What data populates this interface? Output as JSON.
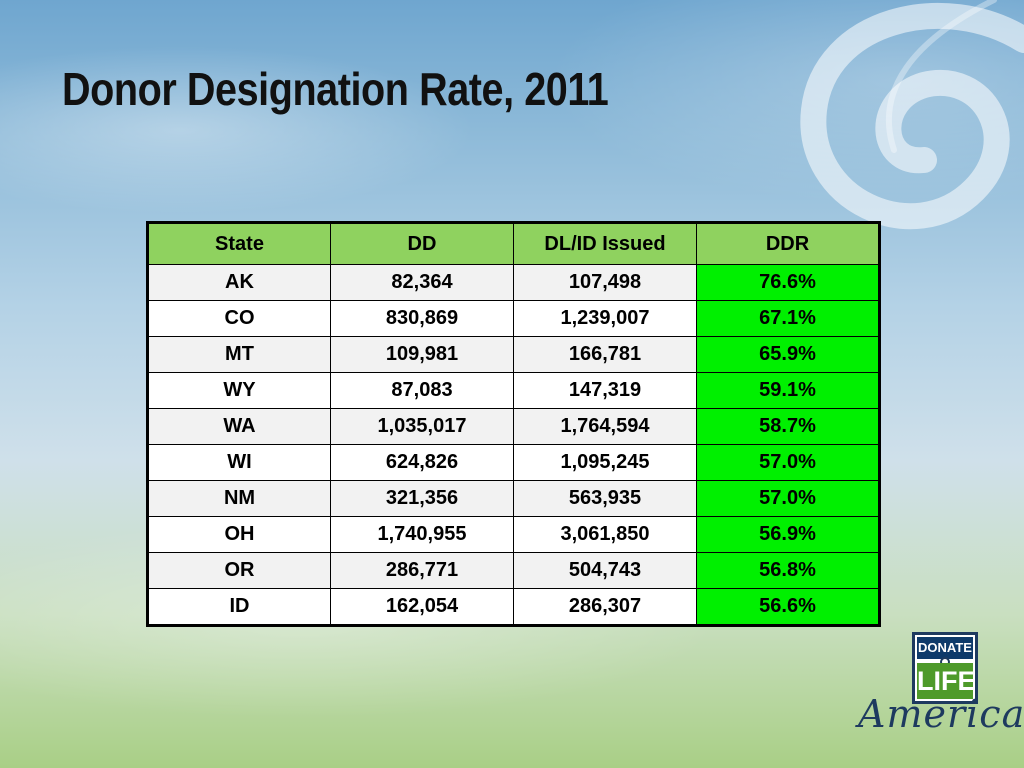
{
  "slide": {
    "title": "Donor Designation Rate, 2011"
  },
  "table": {
    "headers": [
      "State",
      "DD",
      "DL/ID Issued",
      "DDR"
    ],
    "rows": [
      [
        "AK",
        "82,364",
        "107,498",
        "76.6%"
      ],
      [
        "CO",
        "830,869",
        "1,239,007",
        "67.1%"
      ],
      [
        "MT",
        "109,981",
        "166,781",
        "65.9%"
      ],
      [
        "WY",
        "87,083",
        "147,319",
        "59.1%"
      ],
      [
        "WA",
        "1,035,017",
        "1,764,594",
        "58.7%"
      ],
      [
        "WI",
        "624,826",
        "1,095,245",
        "57.0%"
      ],
      [
        "NM",
        "321,356",
        "563,935",
        "57.0%"
      ],
      [
        "OH",
        "1,740,955",
        "3,061,850",
        "56.9%"
      ],
      [
        "OR",
        "286,771",
        "504,743",
        "56.8%"
      ],
      [
        "ID",
        "162,054",
        "286,307",
        "56.6%"
      ]
    ]
  },
  "logo": {
    "top_word": "DONATE",
    "middle_word": "LIFE",
    "script_word": "America"
  },
  "colors": {
    "header_fill": "#8fd25f",
    "rate_fill": "#00f000",
    "title_text": "#111111"
  },
  "icons": {
    "background_swirl": "swirl-icon",
    "logo_knot": "ribbon-knot-icon"
  }
}
